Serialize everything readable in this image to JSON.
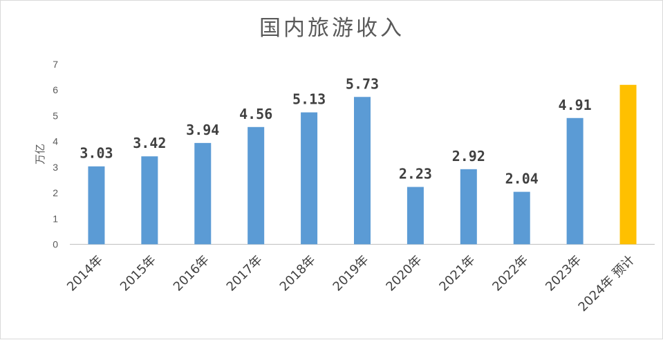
{
  "chart_data": {
    "type": "bar",
    "title": "国内旅游收入",
    "ylabel": "万亿",
    "xlabel": "",
    "ylim": [
      0,
      7
    ],
    "yticks": [
      0,
      1,
      2,
      3,
      4,
      5,
      6,
      7
    ],
    "grid": false,
    "legend": "none",
    "categories": [
      "2014年",
      "2015年",
      "2016年",
      "2017年",
      "2018年",
      "2019年",
      "2020年",
      "2021年",
      "2022年",
      "2023年",
      "2024年 预计"
    ],
    "values": [
      3.03,
      3.42,
      3.94,
      4.56,
      5.13,
      5.73,
      2.23,
      2.92,
      2.04,
      4.91,
      6.2
    ],
    "data_labels": [
      "3.03",
      "3.42",
      "3.94",
      "4.56",
      "5.13",
      "5.73",
      "2.23",
      "2.92",
      "2.04",
      "4.91",
      ""
    ],
    "colors": {
      "actual": "#5b9bd5",
      "forecast": "#ffc000",
      "axis": "#bfbfbf"
    },
    "highlight_index": 10
  }
}
